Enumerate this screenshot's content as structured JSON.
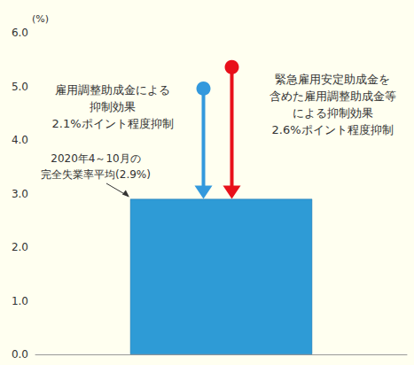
{
  "chart_data": {
    "type": "bar",
    "unit_label": "(%)",
    "categories": [
      null
    ],
    "values": [
      2.9
    ],
    "color": "#2e9bd6",
    "ylim": [
      0,
      6
    ],
    "yticks": [
      {
        "value": 0,
        "label": "0.0"
      },
      {
        "value": 1,
        "label": "1.0"
      },
      {
        "value": 2,
        "label": "2.0"
      },
      {
        "value": 3,
        "label": "3.0"
      },
      {
        "value": 4,
        "label": "4.0"
      },
      {
        "value": 5,
        "label": "5.0"
      },
      {
        "value": 6,
        "label": "6.0"
      }
    ],
    "grid": false,
    "arrows": [
      {
        "from": 4.96,
        "to": 2.9,
        "color": "#3399dd",
        "text": "雇用調整助成金による\n抑制効果\n2.1%ポイント程度抑制"
      },
      {
        "from": 5.36,
        "to": 2.9,
        "color": "#e8101a",
        "text": "緊急雇用安定助成金を\n含めた雇用調整助成金等\nによる抑制効果\n2.6%ポイント程度抑制"
      }
    ],
    "bar_annotation": "2020年4～10月の\n完全失業率平均(2.9%)"
  }
}
